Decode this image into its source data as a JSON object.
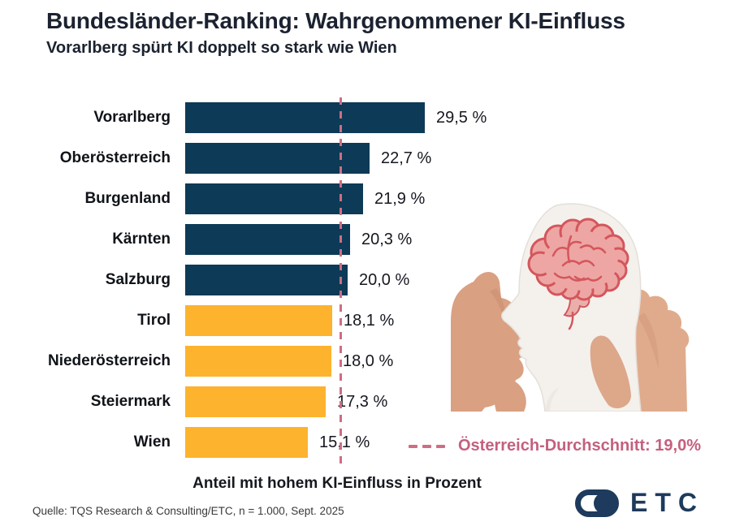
{
  "header": {
    "title": "Bundesländer-Ranking: Wahrgenommener KI-Einfluss",
    "subtitle": "Vorarlberg spürt KI doppelt so stark wie Wien"
  },
  "chart_data": {
    "type": "bar",
    "orientation": "horizontal",
    "categories": [
      "Vorarlberg",
      "Oberösterreich",
      "Burgenland",
      "Kärnten",
      "Salzburg",
      "Tirol",
      "Niederösterreich",
      "Steiermark",
      "Wien"
    ],
    "values": [
      29.5,
      22.7,
      21.9,
      20.3,
      20.0,
      18.1,
      18.0,
      17.3,
      15.1
    ],
    "value_labels": [
      "29,5 %",
      "22,7 %",
      "21,9 %",
      "20,3 %",
      "20,0 %",
      "18,1 %",
      "18,0 %",
      "17,3 %",
      "15,1 %"
    ],
    "bar_groups": [
      "above",
      "above",
      "above",
      "above",
      "above",
      "below",
      "below",
      "below",
      "below"
    ],
    "group_colors": {
      "above": "#0d3a56",
      "below": "#fdb32e"
    },
    "xlabel": "Anteil mit hohem KI-Einfluss in Prozent",
    "xlim": [
      0,
      32
    ],
    "grid": false,
    "legend_position": "bottom-right",
    "reference_line": {
      "value": 19.0,
      "label": "Österreich-Durchschnitt: 19,0%",
      "color": "#cf6d84",
      "style": "dashed"
    }
  },
  "colors": {
    "bar_above_average": "#0d3a56",
    "bar_below_average": "#fdb32e",
    "reference_line": "#cf6d84",
    "legend_text": "#c4607e",
    "logo_navy": "#1e3a5c"
  },
  "illustration": {
    "name": "hands-holding-paper-head-cutout-with-pink-brain"
  },
  "footer": {
    "source": "Quelle: TQS Research & Consulting/ETC, n = 1.000, Sept. 2025",
    "logo_text": "ETC"
  }
}
